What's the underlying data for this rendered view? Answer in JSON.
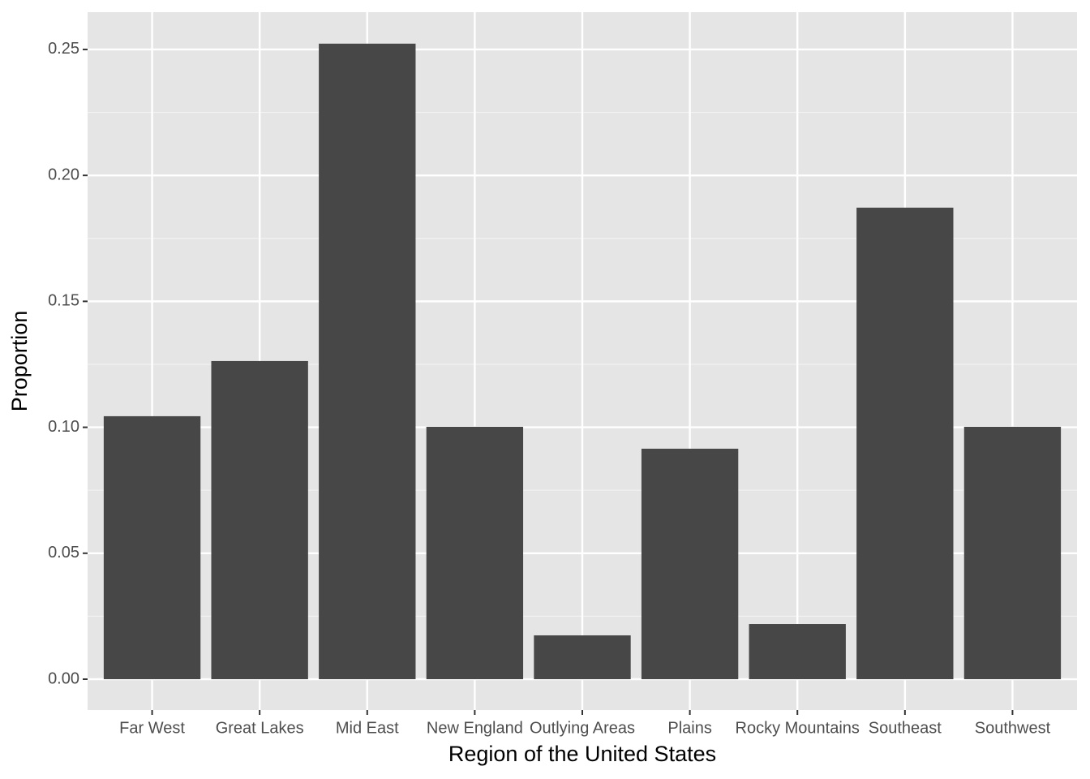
{
  "chart_data": {
    "type": "bar",
    "x_label": "Region of the United States",
    "y_label": "Proportion",
    "categories": [
      "Far West",
      "Great Lakes",
      "Mid East",
      "New England",
      "Outlying Areas",
      "Plains",
      "Rocky Mountains",
      "Southeast",
      "Southwest"
    ],
    "values": [
      0.1044,
      0.1263,
      0.2523,
      0.1002,
      0.0174,
      0.0915,
      0.0219,
      0.1872,
      0.1002
    ],
    "color": "#474747",
    "ylim": [
      -0.01224,
      0.2648
    ],
    "yticks": [
      {
        "value": 0,
        "label": "0.00"
      },
      {
        "value": 0.05,
        "label": "0.05"
      },
      {
        "value": 0.1,
        "label": "0.10"
      },
      {
        "value": 0.15,
        "label": "0.15"
      },
      {
        "value": 0.2,
        "label": "0.20"
      },
      {
        "value": 0.25,
        "label": "0.25"
      }
    ],
    "minor_yticks": [
      0.025,
      0.075,
      0.125,
      0.175,
      0.225
    ],
    "grid": true
  }
}
